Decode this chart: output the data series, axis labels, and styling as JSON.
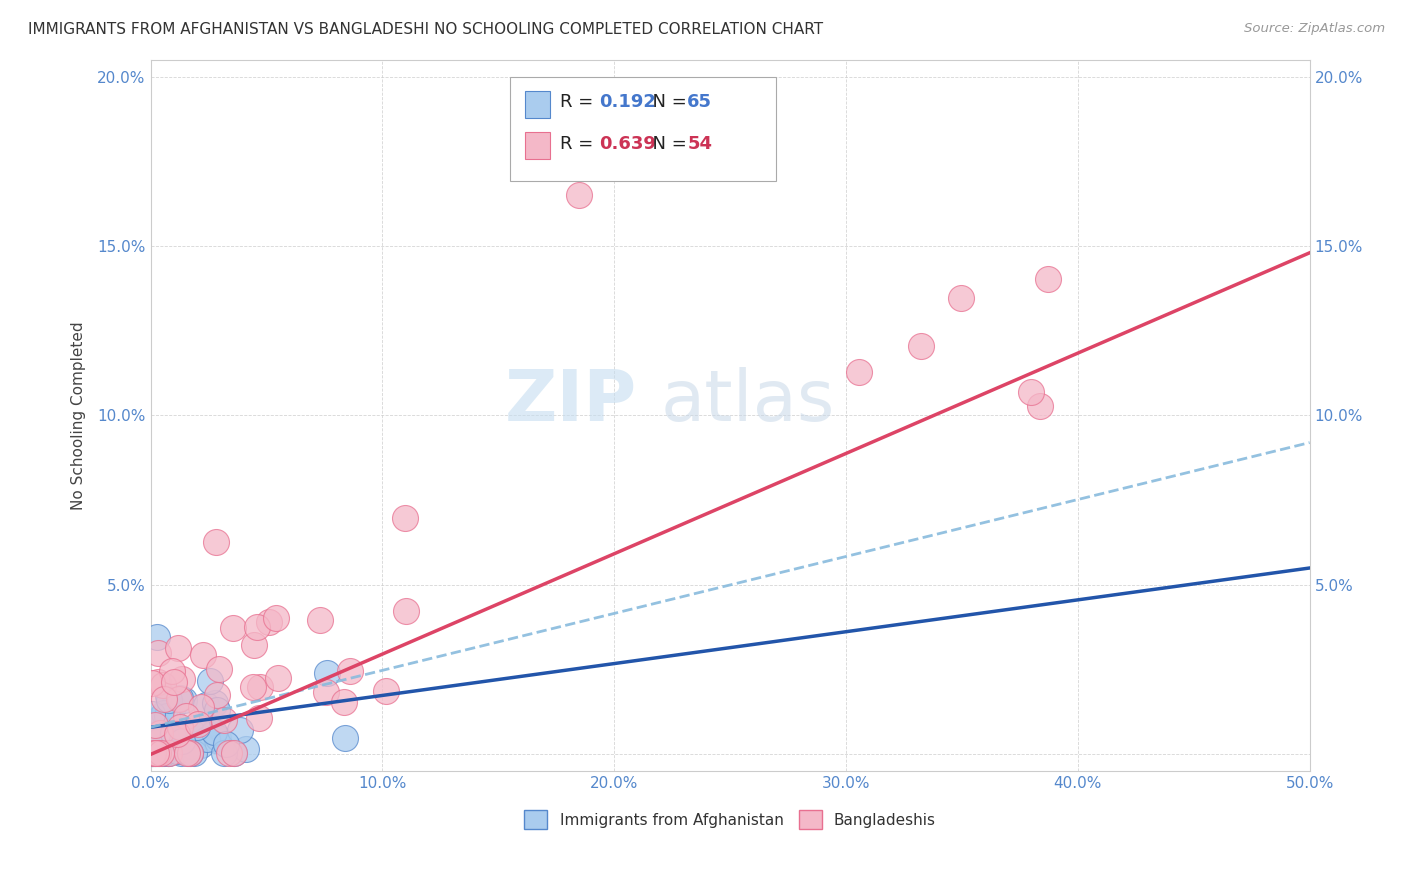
{
  "title": "IMMIGRANTS FROM AFGHANISTAN VS BANGLADESHI NO SCHOOLING COMPLETED CORRELATION CHART",
  "source": "Source: ZipAtlas.com",
  "ylabel": "No Schooling Completed",
  "xlim": [
    0,
    0.5
  ],
  "ylim": [
    -0.005,
    0.205
  ],
  "xticks": [
    0.0,
    0.1,
    0.2,
    0.3,
    0.4,
    0.5
  ],
  "xticklabels": [
    "0.0%",
    "10.0%",
    "20.0%",
    "30.0%",
    "40.0%",
    "50.0%"
  ],
  "yticks": [
    0.0,
    0.05,
    0.1,
    0.15,
    0.2
  ],
  "yticklabels": [
    "",
    "5.0%",
    "10.0%",
    "15.0%",
    "20.0%"
  ],
  "afghanistan_R": 0.192,
  "afghanistan_N": 65,
  "bangladeshi_R": 0.639,
  "bangladeshi_N": 54,
  "afghanistan_color": "#aaccee",
  "bangladeshi_color": "#f4b8c8",
  "afghanistan_edge_color": "#5588cc",
  "bangladeshi_edge_color": "#e87090",
  "afghanistan_line_color": "#2255aa",
  "bangladeshi_line_color": "#dd4466",
  "trendline_dash_color": "#88bbdd",
  "legend_label_1": "Immigrants from Afghanistan",
  "legend_label_2": "Bangladeshis",
  "watermark_zip": "ZIP",
  "watermark_atlas": "atlas",
  "bg_color": "#ffffff",
  "grid_color": "#cccccc",
  "tick_color": "#5588cc",
  "title_color": "#333333",
  "source_color": "#999999",
  "ylabel_color": "#444444",
  "legend_text_color": "#222222",
  "legend_value_color_1": "#4477cc",
  "legend_value_color_2": "#cc3355"
}
